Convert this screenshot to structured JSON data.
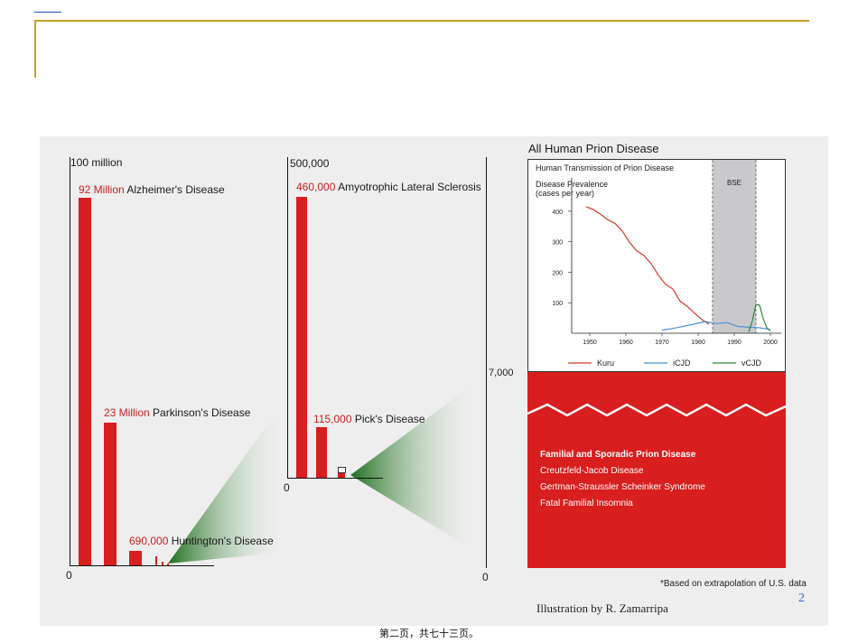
{
  "slide": {
    "page_number": "2",
    "footer": "第二页，共七十三页。",
    "credit": "Illustration by R. Zamarripa"
  },
  "left_chart": {
    "axis_top": "100 million",
    "axis_zero": "0",
    "items": [
      {
        "value": "92 Million",
        "name": "Alzheimer's Disease"
      },
      {
        "value": "23 Million",
        "name": "Parkinson's Disease"
      },
      {
        "value": "690,000",
        "name": "Huntington's Disease"
      }
    ]
  },
  "mid_chart": {
    "axis_top": "500,000",
    "axis_zero": "0",
    "items": [
      {
        "value": "460,000",
        "name": "Amyotrophic Lateral Sclerosis"
      },
      {
        "value": "115,000",
        "name": "Pick's Disease"
      }
    ]
  },
  "right_chart": {
    "title": "All Human Prion Disease",
    "axis_mark": "7,000",
    "axis_zero": "0",
    "note": "*Based on extrapolation of U.S. data",
    "block_title": "Familial and Sporadic Prion Disease",
    "block_items": [
      "Creutzfeld-Jacob Disease",
      "Gertman-Straussler Scheinker Syndrome",
      "Fatal Familial Insomnia"
    ]
  },
  "inset": {
    "title": "Human Transmission of Prion Disease",
    "ylabel1": "Disease Prevalence",
    "ylabel2": "(cases per year)",
    "bse_label": "BSE",
    "yticks": [
      "400",
      "300",
      "200",
      "100"
    ],
    "xticks": [
      "1950",
      "1960",
      "1970",
      "1980",
      "1990",
      "2000"
    ],
    "legend": [
      {
        "name": "Kuru",
        "color": "#d8382a"
      },
      {
        "name": "iCJD",
        "color": "#4a8fd8"
      },
      {
        "name": "vCJD",
        "color": "#2e8b3a"
      }
    ]
  },
  "chart_data": [
    {
      "type": "bar",
      "categories": [
        "Alzheimer's Disease",
        "Parkinson's Disease",
        "Huntington's Disease"
      ],
      "values": [
        92000000,
        23000000,
        690000
      ],
      "ylim": [
        0,
        100000000
      ]
    },
    {
      "type": "bar",
      "categories": [
        "Amyotrophic Lateral Sclerosis",
        "Pick's Disease"
      ],
      "values": [
        460000,
        115000
      ],
      "ylim": [
        0,
        500000
      ]
    },
    {
      "type": "line",
      "title": "Human Transmission of Prion Disease",
      "ylabel": "Disease Prevalence (cases per year)",
      "xlim": [
        1945,
        2003
      ],
      "ylim": [
        0,
        450
      ],
      "shaded_band": {
        "label": "BSE",
        "from": 1984,
        "to": 1996
      },
      "series": [
        {
          "name": "Kuru",
          "color": "#d8382a",
          "x": [
            1949,
            1951,
            1953,
            1955,
            1957,
            1959,
            1961,
            1963,
            1965,
            1967,
            1969,
            1971,
            1973,
            1975,
            1977,
            1979,
            1981,
            1983
          ],
          "y": [
            415,
            405,
            390,
            372,
            360,
            335,
            298,
            270,
            255,
            228,
            190,
            160,
            145,
            105,
            88,
            66,
            45,
            30
          ]
        },
        {
          "name": "iCJD",
          "color": "#4a8fd8",
          "x": [
            1970,
            1974,
            1978,
            1982,
            1985,
            1988,
            1991,
            1994,
            1997,
            2000
          ],
          "y": [
            10,
            18,
            28,
            38,
            32,
            35,
            22,
            20,
            18,
            12
          ]
        },
        {
          "name": "vCJD",
          "color": "#2e8b3a",
          "x": [
            1994,
            1995,
            1996,
            1997,
            1998,
            1999,
            2000
          ],
          "y": [
            5,
            40,
            95,
            92,
            48,
            18,
            8
          ]
        }
      ]
    }
  ]
}
